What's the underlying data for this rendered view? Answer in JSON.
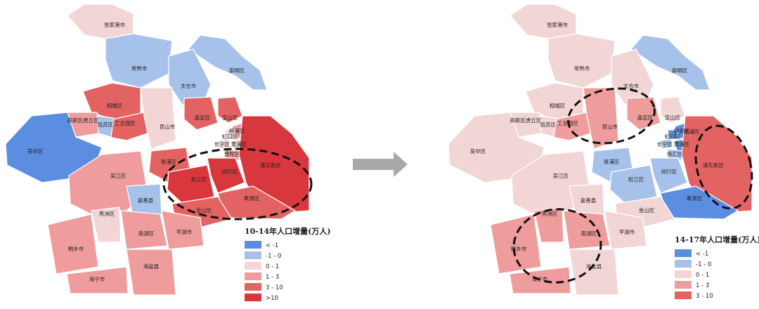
{
  "colors": {
    "lt_neg1": "#5b8de0",
    "neg1_0": "#a7c2ea",
    "z0_1": "#f2d6d6",
    "z1_3": "#ee9c9c",
    "z3_10": "#e36363",
    "gt10": "#d8373d",
    "sea_lake": "#a7c2ea",
    "arrow": "#a8a8a8"
  },
  "maps": [
    {
      "legend_title": "10-14年人口增量(万人)",
      "legend": [
        {
          "color_key": "lt_neg1",
          "label": "< -1"
        },
        {
          "color_key": "neg1_0",
          "label": "-1 - 0"
        },
        {
          "color_key": "z0_1",
          "label": "0 - 1"
        },
        {
          "color_key": "z1_3",
          "label": "1 - 3"
        },
        {
          "color_key": "z3_10",
          "label": "3 - 10"
        },
        {
          "color_key": "gt10",
          "label": ">10"
        }
      ],
      "labels": [
        "张家港市",
        "常熟市",
        "崇明区",
        "太仓市",
        "相城区",
        "工业园区",
        "姑苏区",
        "高新区虎丘区",
        "吴中区",
        "昆山市",
        "嘉定区",
        "宝山区",
        "杨浦区",
        "虹口区",
        "长宁区",
        "黄浦区",
        "普陀区",
        "青浦区",
        "松江区",
        "闵行区",
        "浦东新区",
        "奉贤区",
        "金山区",
        "吴江区",
        "嘉善县",
        "秀洲区",
        "南湖区",
        "平湖市",
        "桐乡市",
        "海盐县",
        "海宁市"
      ]
    },
    {
      "legend_title": "14-17年人口增量(万人)",
      "legend": [
        {
          "color_key": "lt_neg1",
          "label": "< -1"
        },
        {
          "color_key": "neg1_0",
          "label": "-1 - 0"
        },
        {
          "color_key": "z0_1",
          "label": "0 - 1"
        },
        {
          "color_key": "z1_3",
          "label": "1 - 3"
        },
        {
          "color_key": "z3_10",
          "label": "3 - 10"
        }
      ],
      "labels": [
        "张家港市",
        "常熟市",
        "崇明区",
        "太仓市",
        "相城区",
        "工业园区",
        "姑苏区",
        "高新区虎丘区",
        "吴中区",
        "昆山市",
        "嘉定区",
        "宝山区",
        "静安区",
        "虹口区",
        "杨浦区",
        "黄浦区",
        "长宁区",
        "徐汇区",
        "浦东新区",
        "闵行区",
        "青浦区",
        "松江区",
        "奉贤区",
        "吴江区",
        "嘉善县",
        "金山区",
        "秀洲区",
        "南湖区",
        "平湖市",
        "桐乡市",
        "海盐县",
        "海宁市"
      ]
    }
  ]
}
